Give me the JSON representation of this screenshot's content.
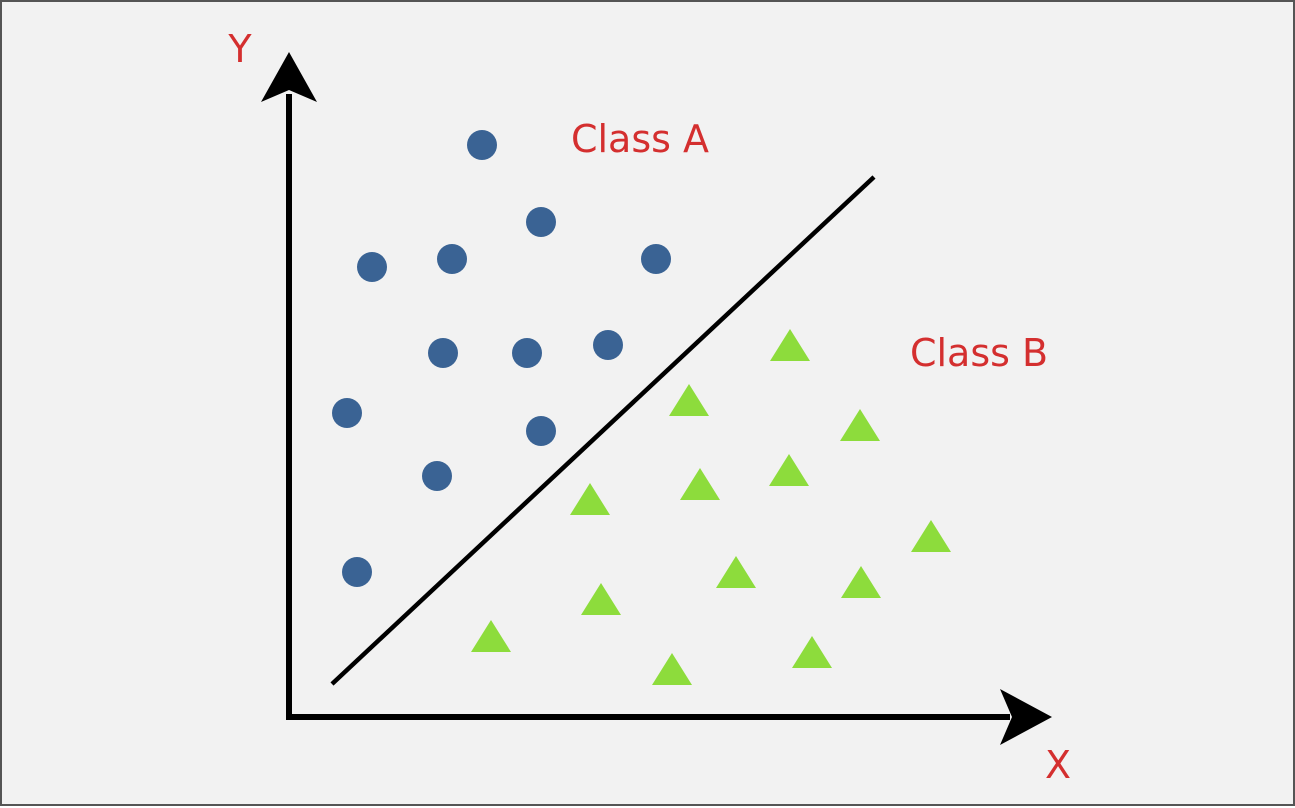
{
  "axes": {
    "x_label": "X",
    "y_label": "Y"
  },
  "classes": [
    {
      "name": "Class A",
      "marker": "circle"
    },
    {
      "name": "Class B",
      "marker": "triangle"
    }
  ],
  "colors": {
    "background": "#f2f2f2",
    "border": "#555555",
    "axis": "#000000",
    "label": "#d42f2f",
    "class_a_marker": "#3a6394",
    "class_b_marker": "#8ddc3c",
    "separator": "#000000"
  }
}
